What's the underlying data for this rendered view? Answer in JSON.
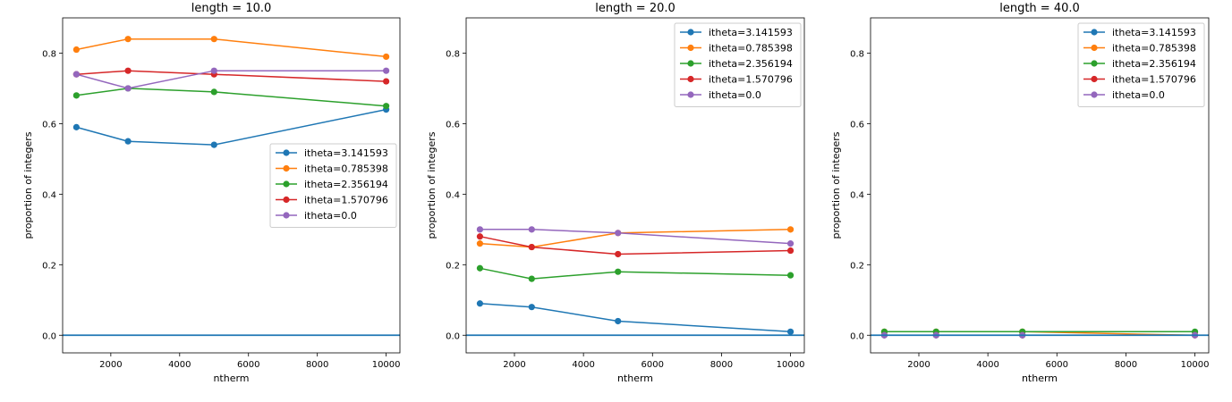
{
  "chart_data": [
    {
      "type": "line",
      "title": "length = 10.0",
      "xlabel": "ntherm",
      "ylabel": "proportion of integers",
      "xlim": [
        600,
        10400
      ],
      "ylim": [
        -0.05,
        0.9
      ],
      "xticks": [
        2000,
        4000,
        6000,
        8000,
        10000
      ],
      "yticks": [
        0.0,
        0.2,
        0.4,
        0.6,
        0.8
      ],
      "ytick_labels": [
        "0.0",
        "0.2",
        "0.4",
        "0.6",
        "0.8"
      ],
      "hline": 0,
      "legend_position": "center-right",
      "x": [
        1000,
        2500,
        5000,
        10000
      ],
      "series": [
        {
          "name": "itheta=3.141593",
          "color": "#1f77b4",
          "values": [
            0.59,
            0.55,
            0.54,
            0.64
          ]
        },
        {
          "name": "itheta=0.785398",
          "color": "#ff7f0e",
          "values": [
            0.81,
            0.84,
            0.84,
            0.79
          ]
        },
        {
          "name": "itheta=2.356194",
          "color": "#2ca02c",
          "values": [
            0.68,
            0.7,
            0.69,
            0.65
          ]
        },
        {
          "name": "itheta=1.570796",
          "color": "#d62728",
          "values": [
            0.74,
            0.75,
            0.74,
            0.72
          ]
        },
        {
          "name": "itheta=0.0",
          "color": "#9467bd",
          "values": [
            0.74,
            0.7,
            0.75,
            0.75
          ]
        }
      ]
    },
    {
      "type": "line",
      "title": "length = 20.0",
      "xlabel": "ntherm",
      "ylabel": "proportion of integers",
      "xlim": [
        600,
        10400
      ],
      "ylim": [
        -0.05,
        0.9
      ],
      "xticks": [
        2000,
        4000,
        6000,
        8000,
        10000
      ],
      "yticks": [
        0.0,
        0.2,
        0.4,
        0.6,
        0.8
      ],
      "ytick_labels": [
        "0.0",
        "0.2",
        "0.4",
        "0.6",
        "0.8"
      ],
      "hline": 0,
      "legend_position": "upper-right",
      "x": [
        1000,
        2500,
        5000,
        10000
      ],
      "series": [
        {
          "name": "itheta=3.141593",
          "color": "#1f77b4",
          "values": [
            0.09,
            0.08,
            0.04,
            0.01
          ]
        },
        {
          "name": "itheta=0.785398",
          "color": "#ff7f0e",
          "values": [
            0.26,
            0.25,
            0.29,
            0.3
          ]
        },
        {
          "name": "itheta=2.356194",
          "color": "#2ca02c",
          "values": [
            0.19,
            0.16,
            0.18,
            0.17
          ]
        },
        {
          "name": "itheta=1.570796",
          "color": "#d62728",
          "values": [
            0.28,
            0.25,
            0.23,
            0.24
          ]
        },
        {
          "name": "itheta=0.0",
          "color": "#9467bd",
          "values": [
            0.3,
            0.3,
            0.29,
            0.26
          ]
        }
      ]
    },
    {
      "type": "line",
      "title": "length = 40.0",
      "xlabel": "ntherm",
      "ylabel": "proportion of integers",
      "xlim": [
        600,
        10400
      ],
      "ylim": [
        -0.05,
        0.9
      ],
      "xticks": [
        2000,
        4000,
        6000,
        8000,
        10000
      ],
      "yticks": [
        0.0,
        0.2,
        0.4,
        0.6,
        0.8
      ],
      "ytick_labels": [
        "0.0",
        "0.2",
        "0.4",
        "0.6",
        "0.8"
      ],
      "hline": 0,
      "legend_position": "upper-right",
      "x": [
        1000,
        2500,
        5000,
        10000
      ],
      "series": [
        {
          "name": "itheta=3.141593",
          "color": "#1f77b4",
          "values": [
            0.0,
            0.0,
            0.0,
            0.0
          ]
        },
        {
          "name": "itheta=0.785398",
          "color": "#ff7f0e",
          "values": [
            0.01,
            0.01,
            0.01,
            0.0
          ]
        },
        {
          "name": "itheta=2.356194",
          "color": "#2ca02c",
          "values": [
            0.01,
            0.01,
            0.01,
            0.01
          ]
        },
        {
          "name": "itheta=1.570796",
          "color": "#d62728",
          "values": [
            0.0,
            0.0,
            0.0,
            0.0
          ]
        },
        {
          "name": "itheta=0.0",
          "color": "#9467bd",
          "values": [
            0.0,
            0.0,
            0.0,
            0.0
          ]
        }
      ]
    }
  ]
}
